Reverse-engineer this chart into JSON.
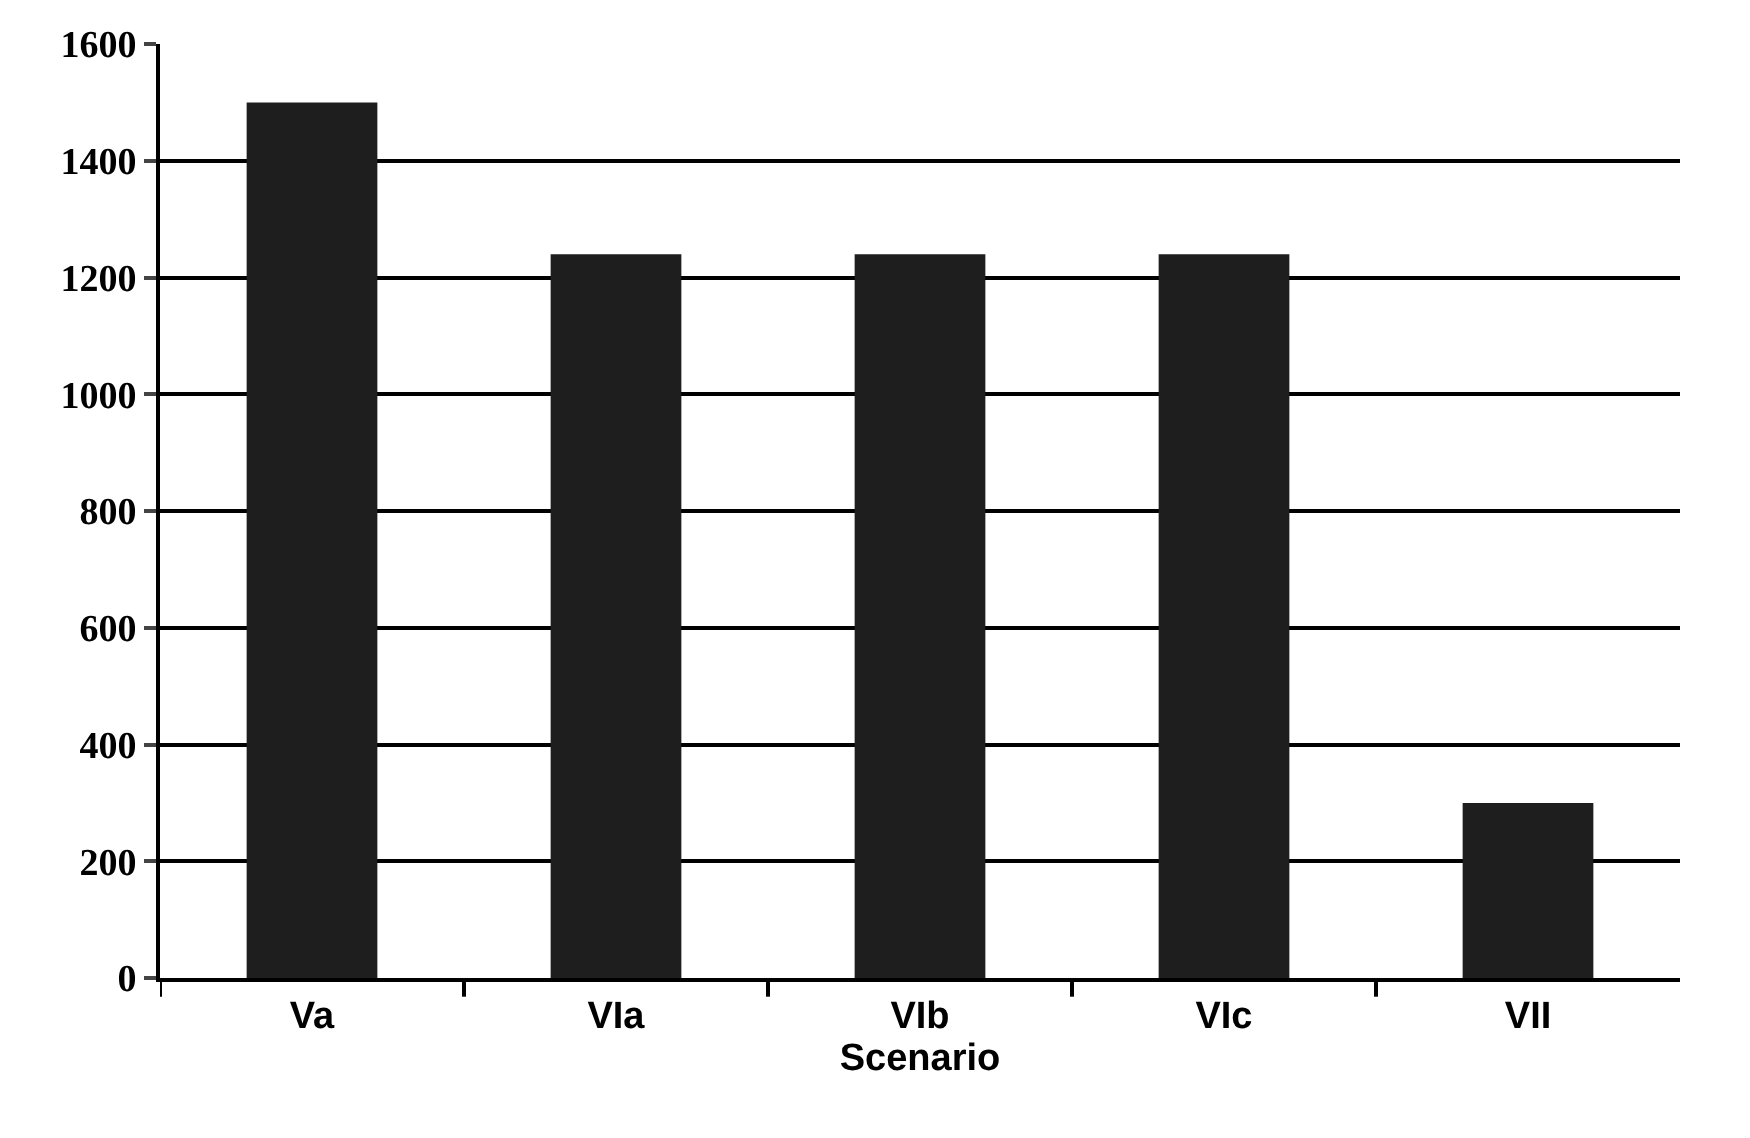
{
  "chart_data": {
    "type": "bar",
    "xlabel": "Scenario",
    "categories": [
      "Va",
      "VIa",
      "VIb",
      "VIc",
      "VII"
    ],
    "values": [
      1500,
      1240,
      1240,
      1240,
      300
    ],
    "color": "#1e1e1e",
    "ylim": [
      0,
      1600
    ],
    "yticks": [
      0,
      200,
      400,
      600,
      800,
      1000,
      1200,
      1400,
      1600
    ],
    "grid": "y",
    "legend": false
  }
}
